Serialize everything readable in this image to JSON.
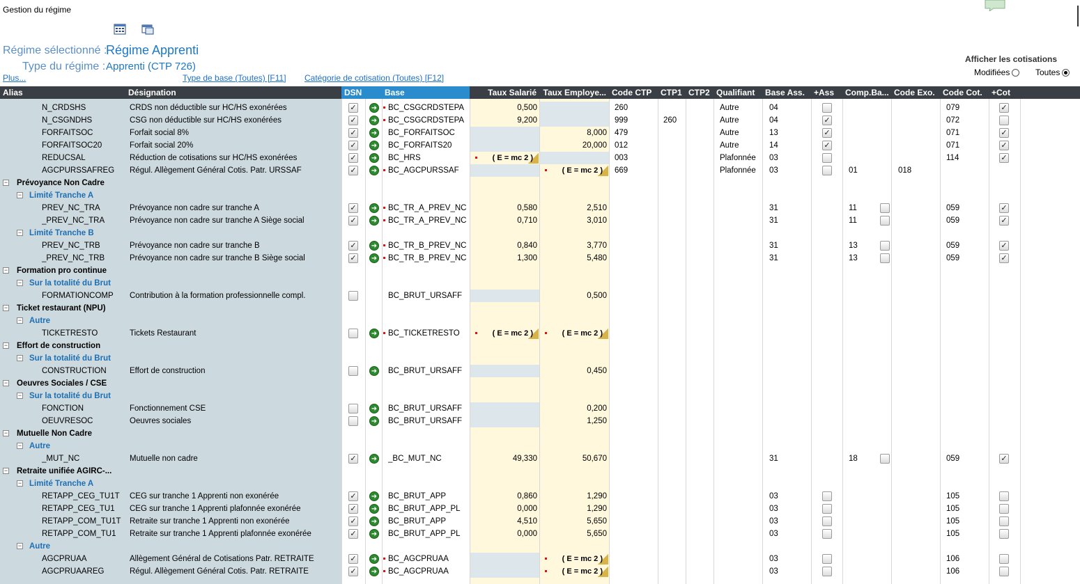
{
  "window_title": "Gestion du régime",
  "toolbar_icons": [
    "calculator-icon",
    "window-icon"
  ],
  "regime": {
    "selected_label": "Régime sélectionné :",
    "selected_value": "Régime Apprenti",
    "type_label": "Type du régime :",
    "type_value": "Apprenti (CTP 726)"
  },
  "links": {
    "more": "Plus...",
    "base_type": "Type de base (Toutes) [F11]",
    "categorie": "Catégorie de cotisation (Toutes) [F12]"
  },
  "display": {
    "title": "Afficher les cotisations",
    "modified_label": "Modifiées",
    "all_label": "Toutes",
    "selected": "Toutes"
  },
  "columns": [
    "Alias",
    "Désignation",
    "DSN",
    "Base",
    "Taux Salarié",
    "Taux Employe...",
    "Code CTP",
    "CTP1",
    "CTP2",
    "Qualifiant",
    "Base Ass.",
    "+Ass",
    "Comp.Ba...",
    "Code Exo.",
    "Code Cot.",
    "+Cot"
  ],
  "colors": {
    "header_bg": "#3a3f45",
    "header_dsn_bg": "#2a8ccc",
    "alias_bg": "#ccd9df",
    "taux_bg": "#fff8dc",
    "gray_cell": "#dde6ea",
    "accent": "#1e78c8"
  },
  "rows": [
    {
      "kind": "item",
      "alias": "N_CRDSHS",
      "designation": "CRDS non déductible sur HC/HS exonérées",
      "dsn": true,
      "arrow": true,
      "base_dot": true,
      "base": "BC_CSGCRDSTEPA",
      "ts": "0,500",
      "te": "",
      "te_gray": true,
      "ctp": "260",
      "ctp1": "",
      "qual": "Autre",
      "bass": "04",
      "ass": "off",
      "comp": "",
      "comp_cb": false,
      "exo": "",
      "cot": "079",
      "pcot": true
    },
    {
      "kind": "item",
      "alias": "N_CSGNDHS",
      "designation": "CSG non déductible sur HC/HS exonérées",
      "dsn": true,
      "arrow": true,
      "base_dot": true,
      "base": "BC_CSGCRDSTEPA",
      "ts": "9,200",
      "te": "",
      "te_gray": true,
      "ctp": "999",
      "ctp1": "260",
      "qual": "Autre",
      "bass": "04",
      "ass": "on",
      "comp": "",
      "comp_cb": false,
      "exo": "",
      "cot": "072",
      "pcot": false
    },
    {
      "kind": "item",
      "alias": "FORFAITSOC",
      "designation": "Forfait social 8%",
      "dsn": true,
      "arrow": true,
      "base_dot": false,
      "base": "BC_FORFAITSOC",
      "ts": "",
      "ts_gray": true,
      "te": "8,000",
      "ctp": "479",
      "ctp1": "",
      "qual": "Autre",
      "bass": "13",
      "ass": "on",
      "comp": "",
      "comp_cb": false,
      "exo": "",
      "cot": "071",
      "pcot": true
    },
    {
      "kind": "item",
      "alias": "FORFAITSOC20",
      "designation": "Forfait social 20%",
      "dsn": true,
      "arrow": true,
      "base_dot": false,
      "base": "BC_FORFAITS20",
      "ts": "",
      "ts_gray": true,
      "te": "20,000",
      "ctp": "012",
      "ctp1": "",
      "qual": "Autre",
      "bass": "14",
      "ass": "on",
      "comp": "",
      "comp_cb": false,
      "exo": "",
      "cot": "071",
      "pcot": true
    },
    {
      "kind": "item",
      "alias": "REDUCSAL",
      "designation": "Réduction de cotisations sur HC/HS exonérées",
      "dsn": true,
      "arrow": true,
      "base_dot": false,
      "base": "BC_HRS",
      "ts": "( E = mc 2 )",
      "ts_formula": true,
      "te": "",
      "te_gray": true,
      "ctp": "003",
      "ctp1": "",
      "qual": "Plafonnée",
      "bass": "03",
      "ass": "off",
      "comp": "",
      "comp_cb": false,
      "exo": "",
      "cot": "114",
      "pcot": true
    },
    {
      "kind": "item",
      "alias": "AGCPURSSAFREG",
      "designation": "Régul. Allègement Général Cotis. Patr. URSSAF",
      "dsn": true,
      "arrow": true,
      "base_dot": true,
      "base": "BC_AGCPURSSAF",
      "ts": "",
      "ts_gray": true,
      "te": "( E = mc 2 )",
      "te_formula": true,
      "ctp": "669",
      "ctp1": "",
      "qual": "Plafonnée",
      "bass": "03",
      "ass": "off",
      "comp": "01",
      "comp_cb": false,
      "exo": "018",
      "cot": "",
      "pcot": null
    },
    {
      "kind": "group",
      "label": "Prévoyance Non Cadre"
    },
    {
      "kind": "sub",
      "label": "Limité Tranche A"
    },
    {
      "kind": "item",
      "alias": "PREV_NC_TRA",
      "designation": "Prévoyance non cadre sur tranche A",
      "dsn": true,
      "arrow": true,
      "base_dot": true,
      "base": "BC_TR_A_PREV_NC",
      "ts": "0,580",
      "te": "2,510",
      "ctp": "",
      "ctp1": "",
      "qual": "",
      "bass": "31",
      "ass": null,
      "comp": "11",
      "comp_cb": true,
      "exo": "",
      "cot": "059",
      "pcot": true
    },
    {
      "kind": "item",
      "alias": "_PREV_NC_TRA",
      "designation": "Prévoyance non cadre sur tranche A Siège social",
      "dsn": true,
      "arrow": true,
      "base_dot": true,
      "base": "BC_TR_A_PREV_NC",
      "ts": "0,710",
      "te": "3,010",
      "ctp": "",
      "ctp1": "",
      "qual": "",
      "bass": "31",
      "ass": null,
      "comp": "11",
      "comp_cb": true,
      "exo": "",
      "cot": "059",
      "pcot": true
    },
    {
      "kind": "sub",
      "label": "Limité Tranche B"
    },
    {
      "kind": "item",
      "alias": "PREV_NC_TRB",
      "designation": "Prévoyance non cadre sur tranche B",
      "dsn": true,
      "arrow": true,
      "base_dot": true,
      "base": "BC_TR_B_PREV_NC",
      "ts": "0,840",
      "te": "3,770",
      "ctp": "",
      "ctp1": "",
      "qual": "",
      "bass": "31",
      "ass": null,
      "comp": "13",
      "comp_cb": true,
      "exo": "",
      "cot": "059",
      "pcot": true
    },
    {
      "kind": "item",
      "alias": "_PREV_NC_TRB",
      "designation": "Prévoyance non cadre sur tranche B Siège social",
      "dsn": true,
      "arrow": true,
      "base_dot": true,
      "base": "BC_TR_B_PREV_NC",
      "ts": "1,300",
      "te": "5,480",
      "ctp": "",
      "ctp1": "",
      "qual": "",
      "bass": "31",
      "ass": null,
      "comp": "13",
      "comp_cb": true,
      "exo": "",
      "cot": "059",
      "pcot": true
    },
    {
      "kind": "group",
      "label": "Formation pro continue"
    },
    {
      "kind": "sub",
      "label": "Sur la totalité du Brut"
    },
    {
      "kind": "item",
      "alias": "FORMATIONCOMP",
      "designation": "Contribution à la formation professionnelle compl.",
      "dsn": false,
      "arrow": false,
      "base_dot": false,
      "base": "BC_BRUT_URSAFF",
      "ts": "",
      "ts_gray": true,
      "te": "0,500",
      "ctp": "",
      "ctp1": "",
      "qual": "",
      "bass": "",
      "ass": null,
      "comp": "",
      "comp_cb": false,
      "exo": "",
      "cot": "",
      "pcot": null
    },
    {
      "kind": "group",
      "label": "Ticket restaurant (NPU)"
    },
    {
      "kind": "sub",
      "label": "Autre"
    },
    {
      "kind": "item",
      "alias": "TICKETRESTO",
      "designation": "Tickets Restaurant",
      "dsn": false,
      "arrow": true,
      "base_dot": true,
      "base": "BC_TICKETRESTO",
      "ts": "( E = mc 2 )",
      "ts_formula": true,
      "te": "( E = mc 2 )",
      "te_formula": true,
      "ctp": "",
      "ctp1": "",
      "qual": "",
      "bass": "",
      "ass": null,
      "comp": "",
      "comp_cb": false,
      "exo": "",
      "cot": "",
      "pcot": null
    },
    {
      "kind": "group",
      "label": "Effort de construction"
    },
    {
      "kind": "sub",
      "label": "Sur la totalité du Brut"
    },
    {
      "kind": "item",
      "alias": "CONSTRUCTION",
      "designation": "Effort de construction",
      "dsn": false,
      "arrow": true,
      "base_dot": false,
      "base": "BC_BRUT_URSAFF",
      "ts": "",
      "ts_gray": true,
      "te": "0,450",
      "ctp": "",
      "ctp1": "",
      "qual": "",
      "bass": "",
      "ass": null,
      "comp": "",
      "comp_cb": false,
      "exo": "",
      "cot": "",
      "pcot": null
    },
    {
      "kind": "group",
      "label": "Oeuvres Sociales / CSE"
    },
    {
      "kind": "sub",
      "label": "Sur la totalité du Brut"
    },
    {
      "kind": "item",
      "alias": "FONCTION",
      "designation": "Fonctionnement CSE",
      "dsn": false,
      "arrow": true,
      "base_dot": false,
      "base": "BC_BRUT_URSAFF",
      "ts": "",
      "ts_gray": true,
      "te": "0,200",
      "ctp": "",
      "ctp1": "",
      "qual": "",
      "bass": "",
      "ass": null,
      "comp": "",
      "comp_cb": false,
      "exo": "",
      "cot": "",
      "pcot": null
    },
    {
      "kind": "item",
      "alias": "OEUVRESOC",
      "designation": "Oeuvres sociales",
      "dsn": false,
      "arrow": true,
      "base_dot": false,
      "base": "BC_BRUT_URSAFF",
      "ts": "",
      "ts_gray": true,
      "te": "1,250",
      "ctp": "",
      "ctp1": "",
      "qual": "",
      "bass": "",
      "ass": null,
      "comp": "",
      "comp_cb": false,
      "exo": "",
      "cot": "",
      "pcot": null
    },
    {
      "kind": "group",
      "label": "Mutuelle Non Cadre"
    },
    {
      "kind": "sub",
      "label": "Autre"
    },
    {
      "kind": "item",
      "alias": "_MUT_NC",
      "designation": "Mutuelle non cadre",
      "dsn": true,
      "arrow": true,
      "base_dot": false,
      "base": "_BC_MUT_NC",
      "ts": "49,330",
      "te": "50,670",
      "ctp": "",
      "ctp1": "",
      "qual": "",
      "bass": "31",
      "ass": null,
      "comp": "18",
      "comp_cb": true,
      "exo": "",
      "cot": "059",
      "pcot": true
    },
    {
      "kind": "group",
      "label": "Retraite unifiée AGIRC-..."
    },
    {
      "kind": "sub",
      "label": "Limité Tranche A"
    },
    {
      "kind": "item",
      "alias": "RETAPP_CEG_TU1T",
      "designation": "CEG sur tranche 1 Apprenti non exonérée",
      "dsn": true,
      "arrow": true,
      "base_dot": false,
      "base": "BC_BRUT_APP",
      "ts": "0,860",
      "te": "1,290",
      "ctp": "",
      "ctp1": "",
      "qual": "",
      "bass": "03",
      "ass": "off",
      "comp": "",
      "comp_cb": false,
      "exo": "",
      "cot": "105",
      "pcot": false
    },
    {
      "kind": "item",
      "alias": "RETAPP_CEG_TU1",
      "designation": "CEG sur tranche 1 Apprenti plafonnée exonérée",
      "dsn": true,
      "arrow": true,
      "base_dot": false,
      "base": "BC_BRUT_APP_PL",
      "ts": "0,000",
      "te": "1,290",
      "ctp": "",
      "ctp1": "",
      "qual": "",
      "bass": "03",
      "ass": "off",
      "comp": "",
      "comp_cb": false,
      "exo": "",
      "cot": "105",
      "pcot": false
    },
    {
      "kind": "item",
      "alias": "RETAPP_COM_TU1T",
      "designation": "Retraite sur tranche 1 Apprenti non exonérée",
      "dsn": true,
      "arrow": true,
      "base_dot": false,
      "base": "BC_BRUT_APP",
      "ts": "4,510",
      "te": "5,650",
      "ctp": "",
      "ctp1": "",
      "qual": "",
      "bass": "03",
      "ass": "off",
      "comp": "",
      "comp_cb": false,
      "exo": "",
      "cot": "105",
      "pcot": false
    },
    {
      "kind": "item",
      "alias": "RETAPP_COM_TU1",
      "designation": "Retraite sur tranche 1 Apprenti plafonnée exonérée",
      "dsn": true,
      "arrow": true,
      "base_dot": false,
      "base": "BC_BRUT_APP_PL",
      "ts": "0,000",
      "te": "5,650",
      "ctp": "",
      "ctp1": "",
      "qual": "",
      "bass": "03",
      "ass": "off",
      "comp": "",
      "comp_cb": false,
      "exo": "",
      "cot": "105",
      "pcot": false
    },
    {
      "kind": "sub",
      "label": "Autre"
    },
    {
      "kind": "item",
      "alias": "AGCPRUAA",
      "designation": "Allègement Général de Cotisations Patr. RETRAITE",
      "dsn": true,
      "arrow": true,
      "base_dot": true,
      "base": "BC_AGCPRUAA",
      "ts": "",
      "ts_gray": true,
      "te": "( E = mc 2 )",
      "te_formula": true,
      "ctp": "",
      "ctp1": "",
      "qual": "",
      "bass": "03",
      "ass": "off",
      "comp": "",
      "comp_cb": false,
      "exo": "",
      "cot": "106",
      "pcot": false
    },
    {
      "kind": "item",
      "alias": "AGCPRUAAREG",
      "designation": "Régul. Allègement Général Cotis. Patr. RETRAITE",
      "dsn": true,
      "arrow": true,
      "base_dot": true,
      "base": "BC_AGCPRUAA",
      "ts": "",
      "ts_gray": true,
      "te": "( E = mc 2 )",
      "te_formula": true,
      "ctp": "",
      "ctp1": "",
      "qual": "",
      "bass": "03",
      "ass": "off",
      "comp": "",
      "comp_cb": false,
      "exo": "",
      "cot": "106",
      "pcot": false
    }
  ]
}
